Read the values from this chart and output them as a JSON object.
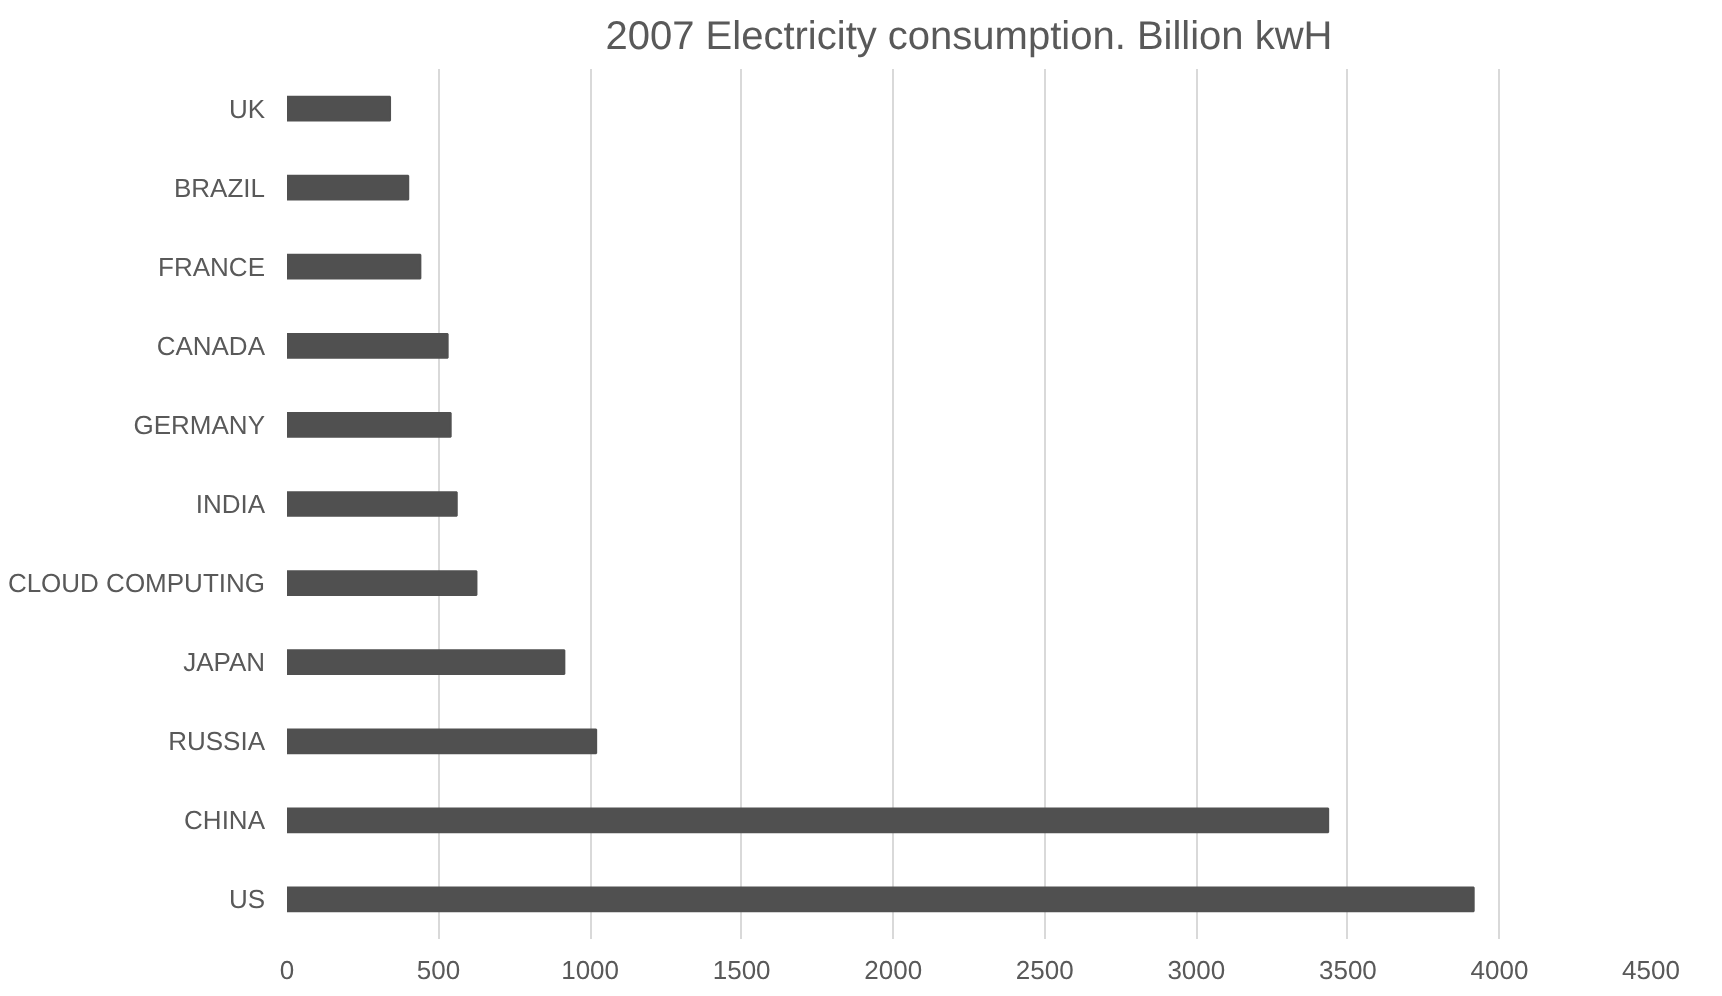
{
  "chart_data": {
    "type": "bar",
    "orientation": "horizontal",
    "title": "2007 Electricity consumption. Billion kwH",
    "categories": [
      "UK",
      "BRAZIL",
      "FRANCE",
      "CANADA",
      "GERMANY",
      "INDIA",
      "CLOUD COMPUTING",
      "JAPAN",
      "RUSSIA",
      "CHINA",
      "US"
    ],
    "values": [
      340,
      400,
      440,
      530,
      540,
      560,
      625,
      915,
      1020,
      3435,
      3915
    ],
    "color": "#505050",
    "xlim": [
      0,
      4500
    ],
    "xticks": [
      0,
      500,
      1000,
      1500,
      2000,
      2500,
      3000,
      3500,
      4000,
      4500
    ],
    "grid": "x"
  }
}
